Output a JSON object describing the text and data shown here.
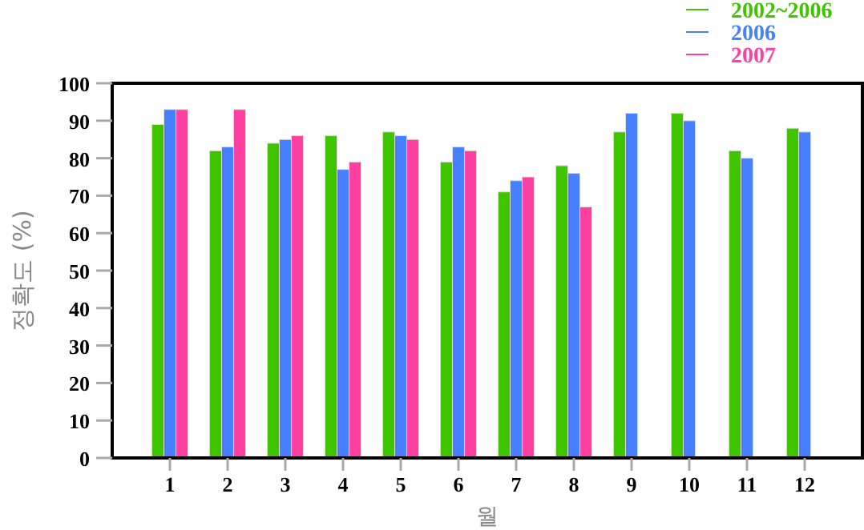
{
  "chart_data": {
    "type": "bar",
    "categories": [
      "1",
      "2",
      "3",
      "4",
      "5",
      "6",
      "7",
      "8",
      "9",
      "10",
      "11",
      "12"
    ],
    "series": [
      {
        "name": "2002~2006",
        "color": "#40c400",
        "values": [
          89,
          82,
          84,
          86,
          87,
          79,
          71,
          78,
          87,
          92,
          82,
          88
        ]
      },
      {
        "name": "2006",
        "color": "#4480ff",
        "values": [
          93,
          83,
          85,
          77,
          86,
          83,
          74,
          76,
          92,
          90,
          80,
          87
        ]
      },
      {
        "name": "2007",
        "color": "#ff40a0",
        "values": [
          93,
          93,
          86,
          79,
          85,
          82,
          75,
          67,
          null,
          null,
          null,
          null
        ]
      }
    ],
    "xlabel": "월",
    "ylabel": "정확도 (%)",
    "ylim": [
      0,
      100
    ],
    "yticks": [
      0,
      10,
      20,
      30,
      40,
      50,
      60,
      70,
      80,
      90,
      100
    ],
    "legend": "top right",
    "grid": false
  }
}
